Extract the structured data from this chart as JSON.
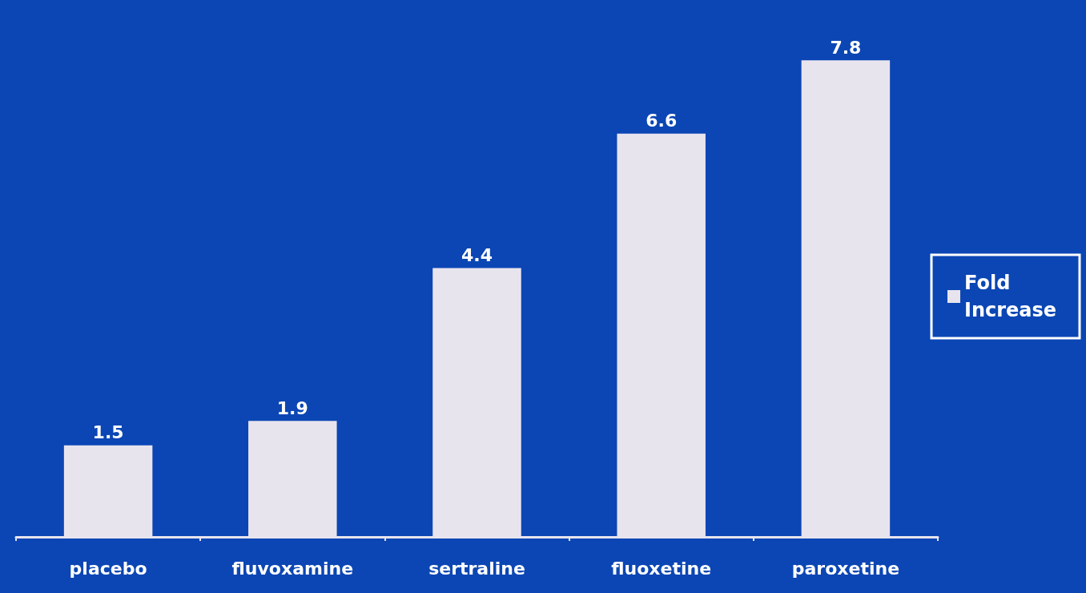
{
  "chart_data": {
    "type": "bar",
    "categories": [
      "placebo",
      "fluvoxamine",
      "sertraline",
      "fluoxetine",
      "paroxetine"
    ],
    "series": [
      {
        "name": "Fold Increase",
        "color": "#e8e4ee",
        "values": [
          1.5,
          1.9,
          4.4,
          6.6,
          7.8
        ]
      }
    ],
    "data_labels": true,
    "tick_labels": "x",
    "legend": "right",
    "grid": false
  }
}
